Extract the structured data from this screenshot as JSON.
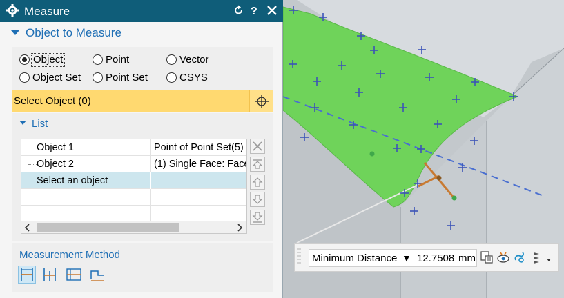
{
  "dialog": {
    "title": "Measure",
    "title_buttons": [
      "reset-icon",
      "help-icon",
      "close-icon"
    ],
    "section_object": "Object to Measure",
    "radio_options": [
      {
        "label": "Object",
        "selected": true
      },
      {
        "label": "Point",
        "selected": false
      },
      {
        "label": "Vector",
        "selected": false
      },
      {
        "label": "Object Set",
        "selected": false
      },
      {
        "label": "Point Set",
        "selected": false
      },
      {
        "label": "CSYS",
        "selected": false
      }
    ],
    "select_object": "Select Object (0)",
    "list_title": "List",
    "list_rows": [
      {
        "name": "Object 1",
        "detail": "Point of Point Set(5)"
      },
      {
        "name": "Object 2",
        "detail": "(1) Single Face: Face"
      },
      {
        "name": "Select an object",
        "detail": ""
      }
    ],
    "list_side_buttons": [
      "remove-icon",
      "move-top-icon",
      "move-up-icon",
      "move-down-icon",
      "move-bottom-icon"
    ],
    "measurement_method_label": "Measurement Method",
    "method_icons": [
      "minimum-distance-icon",
      "projected-distance-icon",
      "screen-distance-icon",
      "length-icon"
    ]
  },
  "toolbar": {
    "measure_type": "Minimum Distance",
    "dropdown_glyph": "▼",
    "value": "12.7508",
    "unit": "mm",
    "icons": [
      "copy-result-icon",
      "show-hide-icon",
      "associative-icon",
      "more-options-icon"
    ]
  },
  "colors": {
    "title_bar": "#0f5d79",
    "accent_blue": "#1f6fb5",
    "selection_yellow": "#ffd970",
    "face_green": "#6fd35a",
    "marker_blue": "#3b53b8",
    "measure_line_orange": "#c87a32"
  }
}
